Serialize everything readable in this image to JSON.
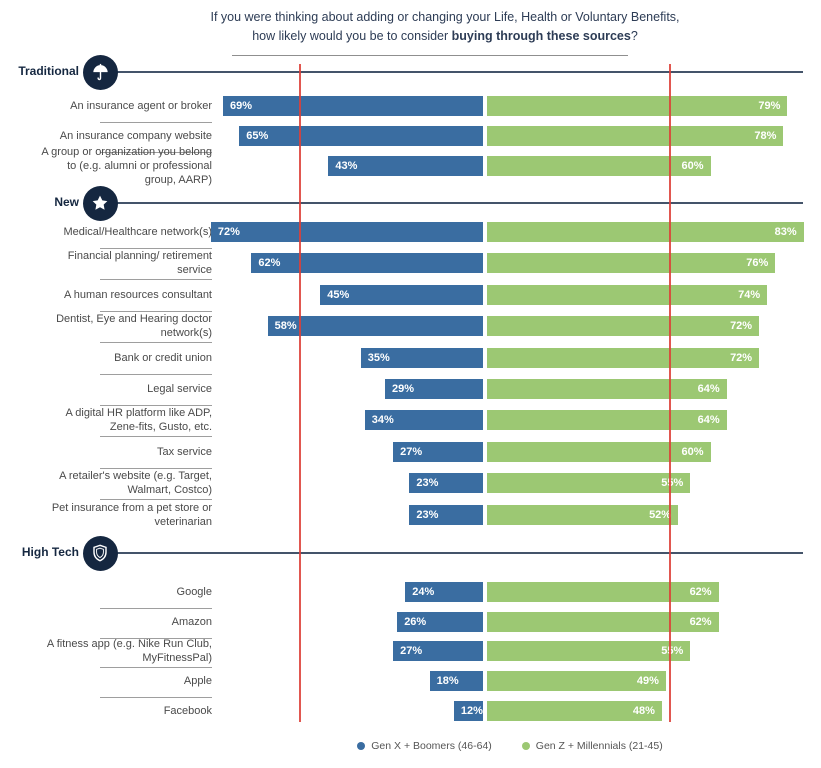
{
  "title": {
    "line1": "If you were thinking about adding or changing your Life, Health or Voluntary Benefits,",
    "line2_prefix": "how likely would you be to consider ",
    "line2_bold": "buying through these sources",
    "line2_suffix": "?"
  },
  "legend": [
    {
      "label": "Gen X  +  Boomers (46-64)",
      "color": "#3a6da1"
    },
    {
      "label": "Gen Z  +  Millennials (21-45)",
      "color": "#9cc873"
    }
  ],
  "colors": {
    "genx_bar": "#3a6da1",
    "genz_bar": "#9cc873",
    "icon_circle": "#152740",
    "section_text": "#152740",
    "reference_line": "#dd4038",
    "title_text": "#2d3c55",
    "label_text": "#4a4a4a"
  },
  "chart_data": {
    "type": "bar",
    "orientation": "horizontal-diverging",
    "value_unit": "%",
    "series_names": [
      "Gen X + Boomers (46-64)",
      "Gen Z + Millennials (21-45)"
    ],
    "legend_position": "bottom",
    "reference_lines": {
      "count": 2,
      "color": "#dd4038",
      "style": "vertical"
    },
    "sections": [
      {
        "name": "Traditional",
        "icon": "umbrella",
        "items": [
          {
            "label": "An insurance agent or broker",
            "genx_boomers": 69,
            "genz_millennials": 79
          },
          {
            "label": "An insurance company website",
            "genx_boomers": 65,
            "genz_millennials": 78
          },
          {
            "label": "A group or organization you belong to (e.g. alumni or professional group, AARP)",
            "genx_boomers": 43,
            "genz_millennials": 60
          }
        ]
      },
      {
        "name": "New",
        "icon": "star",
        "items": [
          {
            "label": "Medical/Healthcare network(s)",
            "genx_boomers": 72,
            "genz_millennials": 83
          },
          {
            "label": "Financial planning/ retirement service",
            "genx_boomers": 62,
            "genz_millennials": 76
          },
          {
            "label": "A human resources consultant",
            "genx_boomers": 45,
            "genz_millennials": 74
          },
          {
            "label": "Dentist, Eye and Hearing doctor network(s)",
            "genx_boomers": 58,
            "genz_millennials": 72
          },
          {
            "label": "Bank or credit union",
            "genx_boomers": 35,
            "genz_millennials": 72
          },
          {
            "label": "Legal service",
            "genx_boomers": 29,
            "genz_millennials": 64
          },
          {
            "label": "A digital HR platform like ADP, Zene-fits, Gusto, etc.",
            "genx_boomers": 34,
            "genz_millennials": 64
          },
          {
            "label": "Tax service",
            "genx_boomers": 27,
            "genz_millennials": 60
          },
          {
            "label": "A retailer's website (e.g. Target, Walmart, Costco)",
            "genx_boomers": 23,
            "genz_millennials": 55
          },
          {
            "label": "Pet insurance from a pet store or veterinarian",
            "genx_boomers": 23,
            "genz_millennials": 52
          }
        ]
      },
      {
        "name": "High Tech",
        "icon": "shield",
        "items": [
          {
            "label": "Google",
            "genx_boomers": 24,
            "genz_millennials": 62
          },
          {
            "label": "Amazon",
            "genx_boomers": 26,
            "genz_millennials": 62
          },
          {
            "label": "A fitness app (e.g. Nike Run Club, MyFitnessPal)",
            "genx_boomers": 27,
            "genz_millennials": 55
          },
          {
            "label": "Apple",
            "genx_boomers": 18,
            "genz_millennials": 49
          },
          {
            "label": "Facebook",
            "genx_boomers": 12,
            "genz_millennials": 48
          }
        ]
      }
    ]
  }
}
